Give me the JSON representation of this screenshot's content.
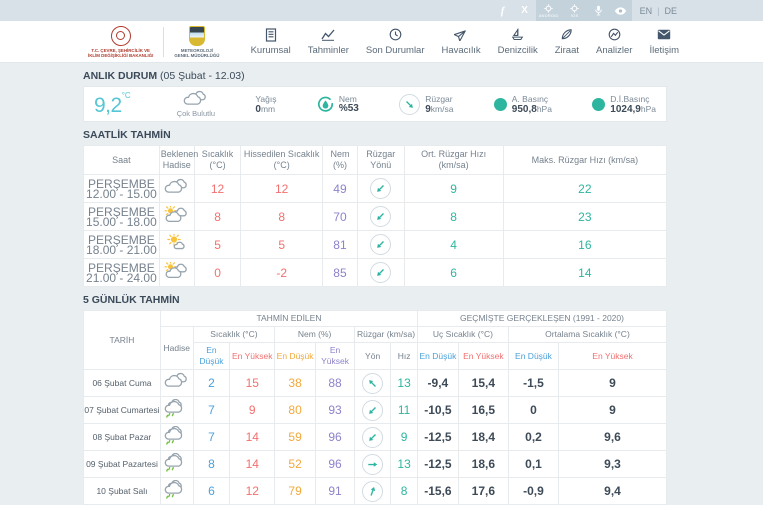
{
  "topbar": {
    "social": [
      {
        "name": "facebook",
        "glyph": "f"
      },
      {
        "name": "x-twitter",
        "glyph": "X"
      }
    ],
    "badges": [
      {
        "caption": "ANDROID"
      },
      {
        "caption": "IOS"
      }
    ],
    "languages": {
      "en": "EN",
      "separator": "|",
      "de": "DE"
    }
  },
  "header": {
    "ministry": {
      "line1": "T.C. ÇEVRE, ŞEHİRCİLİK VE",
      "line2": "İKLİM DEĞİŞİKLİĞİ BAKANLIĞI"
    },
    "mgm": {
      "line1": "METEOROLOJİ",
      "line2": "GENEL MÜDÜRLÜĞÜ"
    },
    "nav": [
      {
        "label": "Kurumsal",
        "icon": "building"
      },
      {
        "label": "Tahminler",
        "icon": "chart"
      },
      {
        "label": "Son Durumlar",
        "icon": "clock"
      },
      {
        "label": "Havacılık",
        "icon": "plane"
      },
      {
        "label": "Denizcilik",
        "icon": "boat"
      },
      {
        "label": "Ziraat",
        "icon": "leaf"
      },
      {
        "label": "Analizler",
        "icon": "gauge"
      },
      {
        "label": "İletişim",
        "icon": "mail"
      }
    ]
  },
  "current": {
    "title": "ANLIK DURUM",
    "subtitle": "(05 Şubat - 12.03)",
    "temperature": "9,2",
    "temperature_unit": "°C",
    "condition": "Çok Bulutlu",
    "condition_icon": "cloudy",
    "rain_label": "Yağış",
    "rain_value": "0",
    "rain_unit": "mm",
    "humidity_label": "Nem",
    "humidity_value": "%53",
    "wind_label": "Rüzgar",
    "wind_value": "9",
    "wind_unit": "km/sa",
    "wind_dir_deg": 135,
    "pressure_label": "A. Basınç",
    "pressure_value": "950,8",
    "pressure_unit": "hPa",
    "sea_pressure_label": "D.İ.Basınç",
    "sea_pressure_value": "1024,9",
    "sea_pressure_unit": "hPa"
  },
  "hourly": {
    "title": "SAATLİK TAHMİN",
    "columns": [
      "Saat",
      "Beklenen Hadise",
      "Sıcaklık (°C)",
      "Hissedilen Sıcaklık (°C)",
      "Nem (%)",
      "Rüzgar Yönü",
      "Ort. Rüzgar Hızı (km/sa)",
      "Maks. Rüzgar Hızı (km/sa)"
    ],
    "rows": [
      {
        "day": "PERŞEMBE",
        "time": "12.00 - 15.00",
        "icon": "cloudy",
        "temp": "12",
        "feels": "12",
        "humidity": "49",
        "wind_deg": 225,
        "wind_avg": "9",
        "wind_max": "22"
      },
      {
        "day": "PERŞEMBE",
        "time": "15.00 - 18.00",
        "icon": "sun-clouds",
        "temp": "8",
        "feels": "8",
        "humidity": "70",
        "wind_deg": 225,
        "wind_avg": "8",
        "wind_max": "23"
      },
      {
        "day": "PERŞEMBE",
        "time": "18.00 - 21.00",
        "icon": "sunny-cloud",
        "temp": "5",
        "feels": "5",
        "humidity": "81",
        "wind_deg": 225,
        "wind_avg": "4",
        "wind_max": "16"
      },
      {
        "day": "PERŞEMBE",
        "time": "21.00 - 24.00",
        "icon": "sun-clouds",
        "temp": "0",
        "feels": "-2",
        "humidity": "85",
        "wind_deg": 225,
        "wind_avg": "6",
        "wind_max": "14"
      }
    ]
  },
  "daily": {
    "title": "5 GÜNLÜK TAHMİN",
    "header": {
      "date": "TARİH",
      "event": "Hadise",
      "predicted": "TAHMİN EDİLEN",
      "historical": "GEÇMİŞTE GERÇEKLEŞEN (1991 - 2020)",
      "temp_group": "Sıcaklık (°C)",
      "hum_group": "Nem (%)",
      "wind_group": "Rüzgar (km/sa)",
      "ext_group": "Uç Sıcaklık (°C)",
      "avg_group": "Ortalama Sıcaklık (°C)",
      "min": "En Düşük",
      "max": "En Yüksek",
      "dir": "Yön",
      "speed": "Hız"
    },
    "rows": [
      {
        "date": "06 Şubat Cuma",
        "icon": "cloudy",
        "tmin": "2",
        "tmax": "15",
        "hmin": "38",
        "hmax": "88",
        "wind_deg": 315,
        "wind": "13",
        "ext_min": "-9,4",
        "ext_max": "15,4",
        "avg_min": "-1,5",
        "avg_max": "9"
      },
      {
        "date": "07 Şubat Cumartesi",
        "icon": "rain",
        "tmin": "7",
        "tmax": "9",
        "hmin": "80",
        "hmax": "93",
        "wind_deg": 225,
        "wind": "11",
        "ext_min": "-10,5",
        "ext_max": "16,5",
        "avg_min": "0",
        "avg_max": "9"
      },
      {
        "date": "08 Şubat Pazar",
        "icon": "rain",
        "tmin": "7",
        "tmax": "14",
        "hmin": "59",
        "hmax": "96",
        "wind_deg": 225,
        "wind": "9",
        "ext_min": "-12,5",
        "ext_max": "18,4",
        "avg_min": "0,2",
        "avg_max": "9,6"
      },
      {
        "date": "09 Şubat Pazartesi",
        "icon": "rain",
        "tmin": "8",
        "tmax": "14",
        "hmin": "52",
        "hmax": "96",
        "wind_deg": 90,
        "wind": "13",
        "ext_min": "-12,5",
        "ext_max": "18,6",
        "avg_min": "0,1",
        "avg_max": "9,3"
      },
      {
        "date": "10 Şubat Salı",
        "icon": "rain",
        "tmin": "6",
        "tmax": "12",
        "hmin": "79",
        "hmax": "91",
        "wind_deg": 20,
        "wind": "8",
        "ext_min": "-15,6",
        "ext_max": "17,6",
        "avg_min": "-0,9",
        "avg_max": "9,4"
      }
    ]
  },
  "colors": {
    "teal": "#2eb5a0",
    "cyan": "#55c6d4",
    "red": "#f2706f",
    "purple": "#8c83cb",
    "orange": "#f2a93b",
    "blue": "#4aa1db",
    "topbar_bg": "#d8e1e8",
    "page_bg": "#e9eef1"
  }
}
